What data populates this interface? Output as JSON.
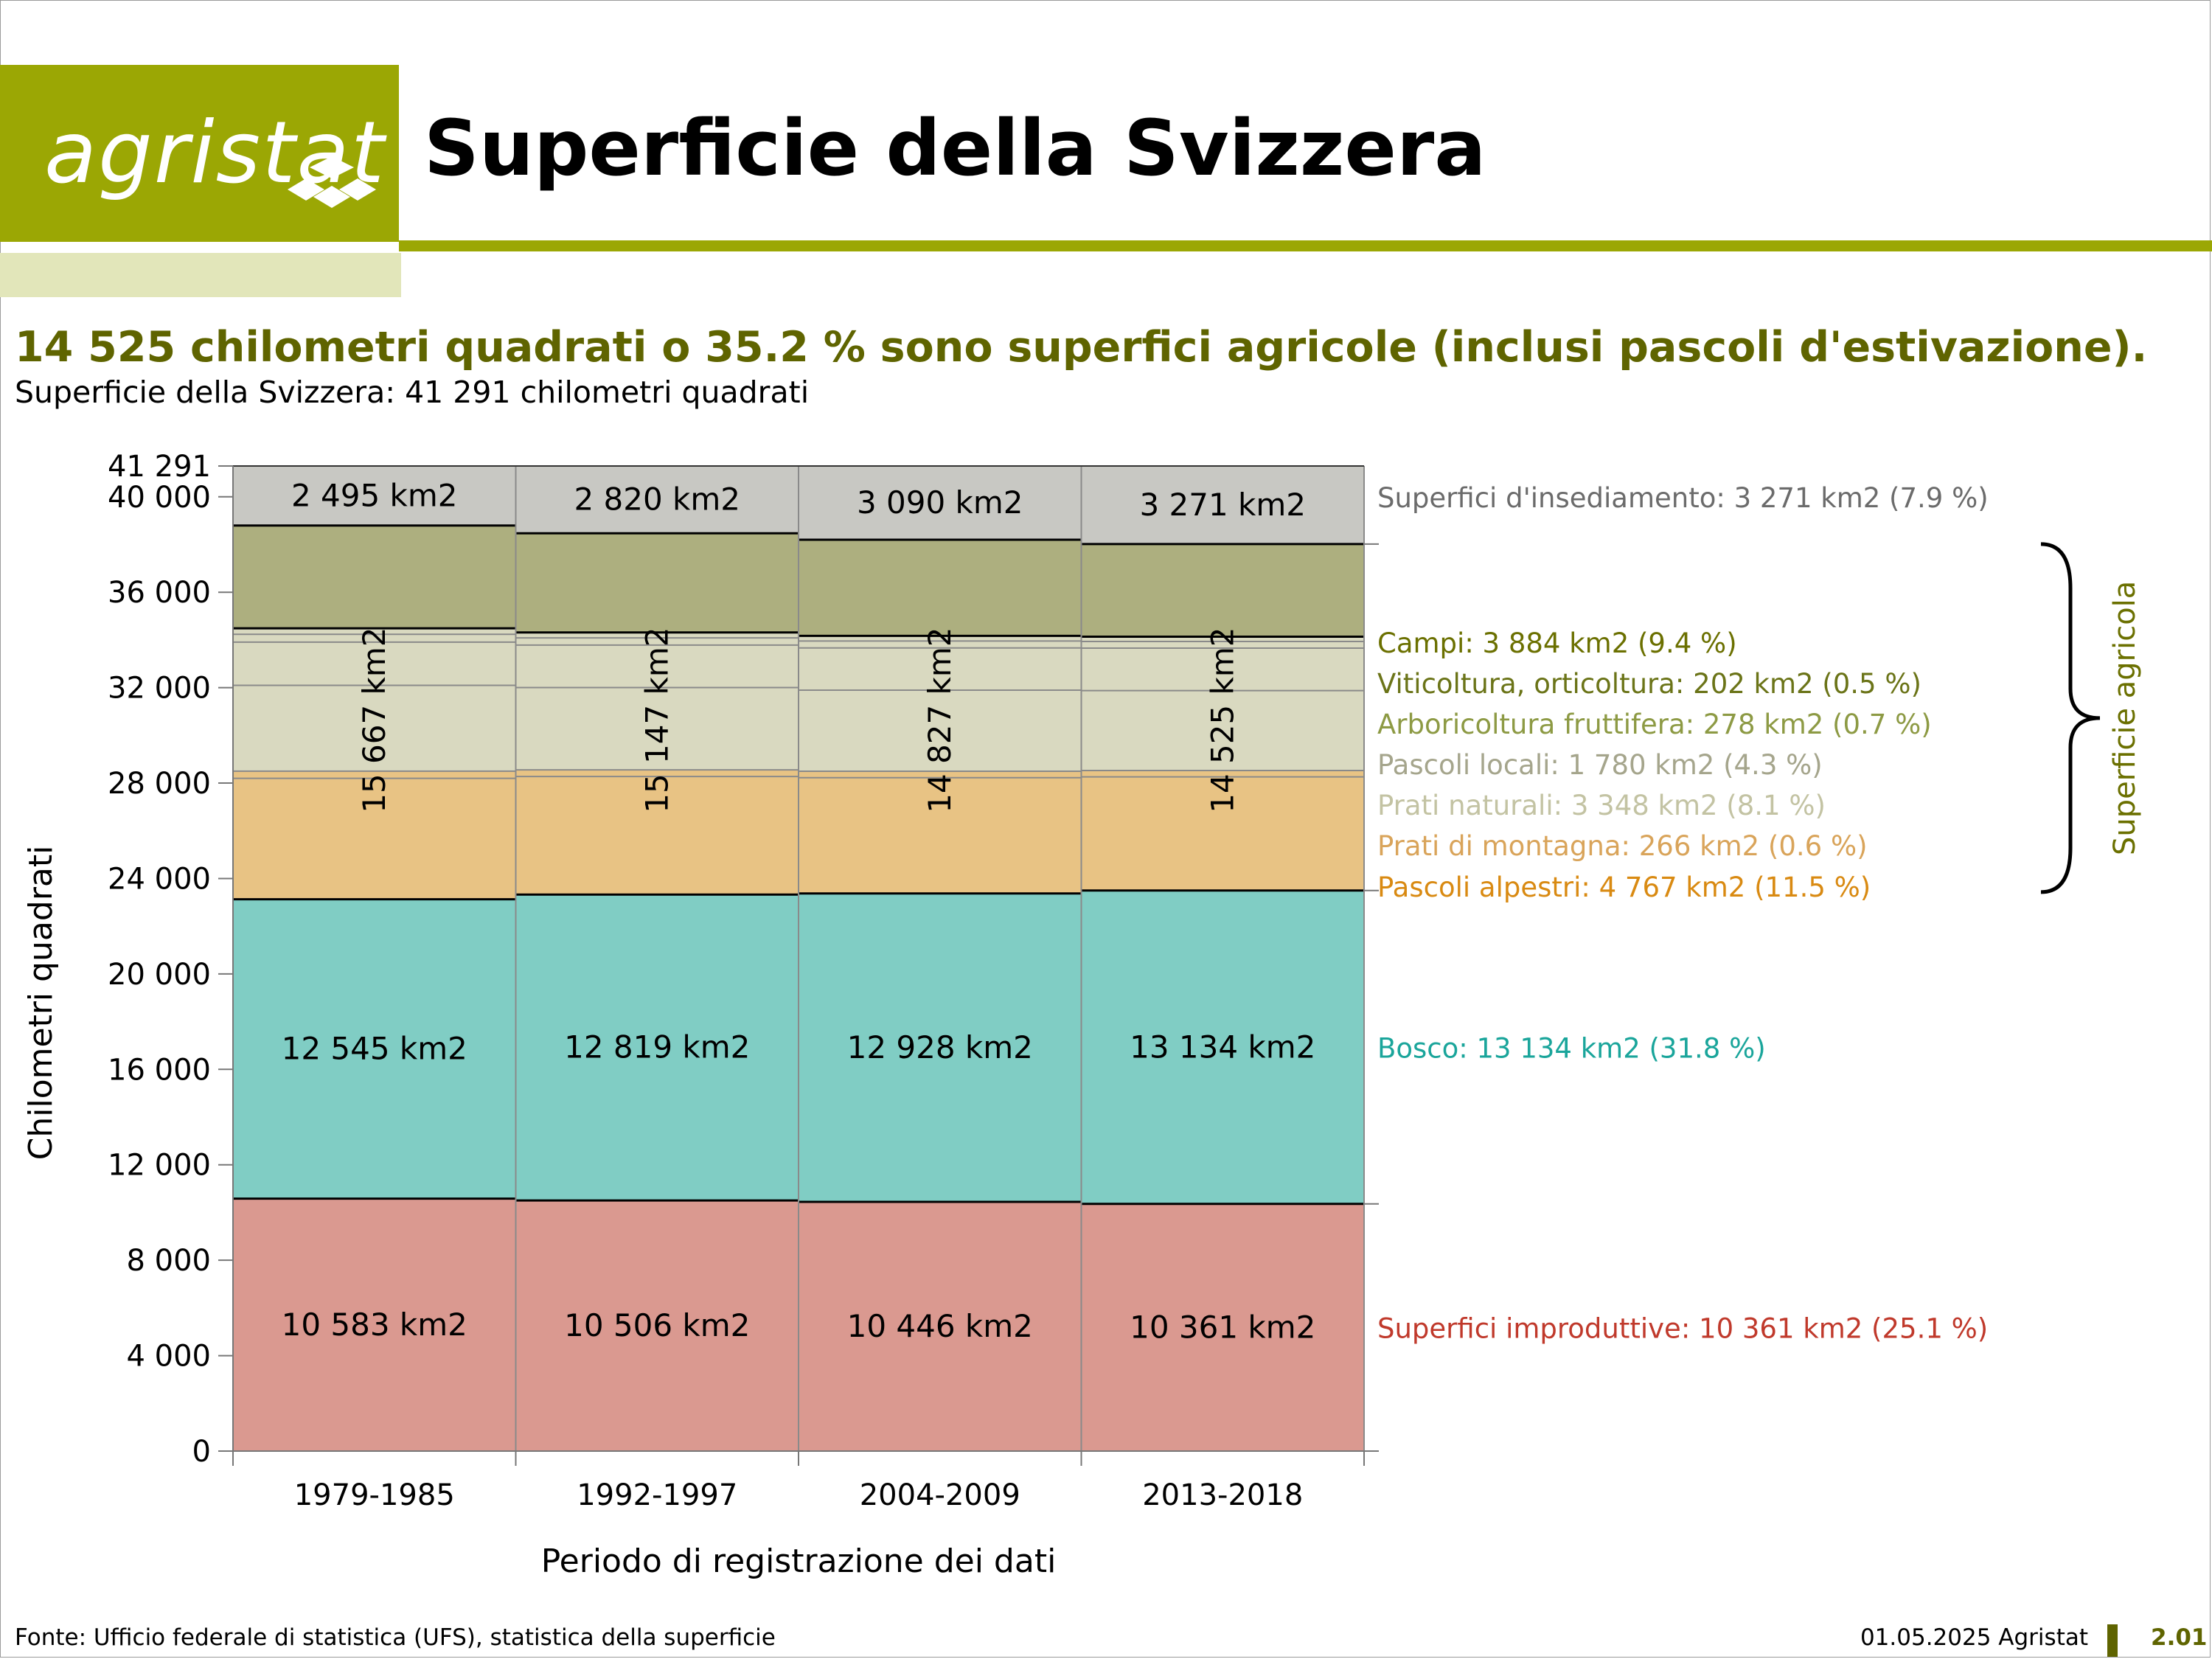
{
  "header": {
    "logo_text": "agristat",
    "title": "Superficie della Svizzera"
  },
  "headline": "14 525 chilometri quadrati o 35.2 % sono superfici agricole (inclusi pascoli d'estivazione).",
  "subline": "Superficie della Svizzera: 41 291 chilometri quadrati",
  "footer": {
    "source": "Fonte: Ufficio federale di statistica (UFS), statistica della superficie",
    "date": "01.05.2025 Agristat",
    "page": "2.01"
  },
  "colors": {
    "brand": "#9ba704",
    "brand_light": "#e2e6ba",
    "brand_dark": "#5f6400"
  },
  "chart_data": {
    "type": "bar",
    "stacked": true,
    "categories": [
      "1979-1985",
      "1992-1997",
      "2004-2009",
      "2013-2018"
    ],
    "xlabel": "Periodo di registrazione dei dati",
    "ylabel": "Chilometri quadrati",
    "ylim": [
      0,
      41291
    ],
    "yticks": [
      0,
      4000,
      8000,
      12000,
      16000,
      20000,
      24000,
      28000,
      32000,
      36000,
      40000,
      41291
    ],
    "ytick_labels": [
      "0",
      "4 000",
      "8 000",
      "12 000",
      "16 000",
      "20 000",
      "24 000",
      "28 000",
      "32 000",
      "36 000",
      "40 000",
      "41 291"
    ],
    "series": [
      {
        "name": "Superfici improduttive: 10 361 km2 (25.1 %)",
        "color": "#da9990",
        "label_color": "#c0392b",
        "values": [
          10583,
          10506,
          10446,
          10361
        ]
      },
      {
        "name": "Bosco: 13 134 km2 (31.8 %)",
        "color": "#80cdc4",
        "label_color": "#1aa59b",
        "values": [
          12545,
          12819,
          12928,
          13134
        ]
      },
      {
        "name": "Pascoli alpestri: 4 767 km2 (11.5 %)",
        "color": "#e8c384",
        "label_color": "#d98a12",
        "values": [
          5070,
          4950,
          4850,
          4767
        ]
      },
      {
        "name": "Prati di montagna: 266 km2 (0.6 %)",
        "color": "#e8c384",
        "label_color": "#d9a45a",
        "values": [
          300,
          280,
          270,
          266
        ]
      },
      {
        "name": "Prati naturali: 3 348 km2 (8.1 %)",
        "color": "#d9d9c0",
        "label_color": "#c3c3a3",
        "values": [
          3600,
          3450,
          3400,
          3348
        ]
      },
      {
        "name": "Pascoli locali: 1 780 km2 (4.3 %)",
        "color": "#d9d9c0",
        "label_color": "#a5a58c",
        "values": [
          1810,
          1780,
          1770,
          1780
        ]
      },
      {
        "name": "Arboricoltura fruttifera: 278 km2 (0.7 %)",
        "color": "#d9d9c0",
        "label_color": "#8d9a44",
        "values": [
          330,
          300,
          290,
          278
        ]
      },
      {
        "name": "Viticoltura, orticoltura: 202 km2 (0.5 %)",
        "color": "#d9d9c0",
        "label_color": "#6b7418",
        "values": [
          250,
          230,
          215,
          202
        ]
      },
      {
        "name": "Campi: 3 884 km2 (9.4 %)",
        "color": "#adaf7f",
        "label_color": "#6b7000",
        "values": [
          4307,
          4157,
          4032,
          3884
        ]
      },
      {
        "name": "Superfici d'insediamento: 3 271 km2 (7.9 %)",
        "color": "#c8c8c3",
        "label_color": "#6b6b6b",
        "values": [
          2495,
          2820,
          3090,
          3271
        ]
      }
    ],
    "bar_labels": {
      "improduttive": [
        "10 583 km2",
        "10 506 km2",
        "10 446 km2",
        "10 361 km2"
      ],
      "bosco": [
        "12 545 km2",
        "12 819 km2",
        "12 928 km2",
        "13 134 km2"
      ],
      "agricola": [
        "15 667 km2",
        "15 147 km2",
        "14 827 km2",
        "14 525 km2"
      ],
      "insediamento": [
        "2 495 km2",
        "2 820 km2",
        "3 090 km2",
        "3 271 km2"
      ]
    },
    "brace_label": "Superficie agricola"
  }
}
